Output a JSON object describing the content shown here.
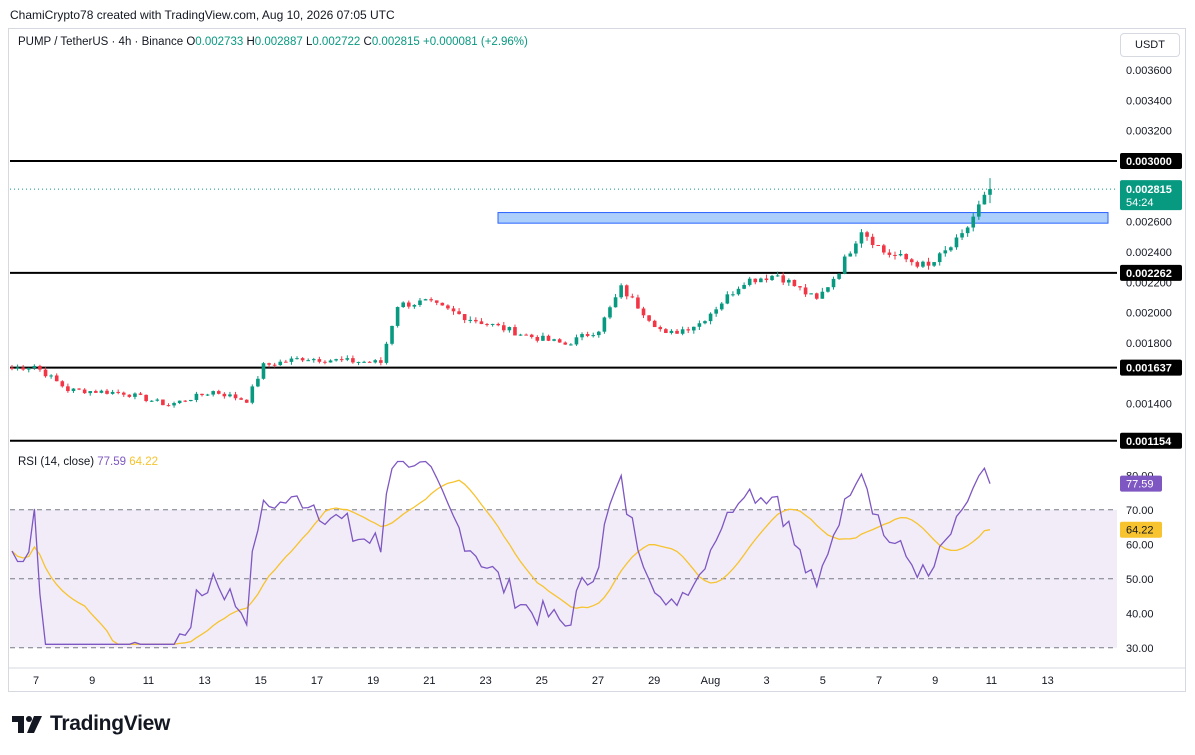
{
  "header": {
    "attribution": "ChamiCrypto78 created with TradingView.com, Aug 10, 2026 07:05 UTC"
  },
  "legend": {
    "symbol": "PUMP / TetherUS · 4h · Binance",
    "open_label": "O",
    "open": "0.002733",
    "high_label": "H",
    "high": "0.002887",
    "low_label": "L",
    "low": "0.002722",
    "close_label": "C",
    "close": "0.002815",
    "change": "+0.000081 (+2.96%)"
  },
  "currency_button": "USDT",
  "rsi_legend": {
    "label": "RSI (14, close)",
    "rsi_value": "77.59",
    "ma_value": "64.22"
  },
  "brand": {
    "name": "TradingView"
  },
  "colors": {
    "up": "#089981",
    "down": "#f23645",
    "rsi": "#7e57c2",
    "rsi_ma": "#f7c32e",
    "zone": "#90bff9",
    "zone_border": "#2962ff",
    "band": "#ede7f6"
  },
  "chart_data": [
    {
      "type": "candlestick",
      "pair": "PUMP / TetherUS",
      "interval": "4h",
      "x_ticks": [
        "7",
        "9",
        "11",
        "13",
        "15",
        "17",
        "19",
        "21",
        "23",
        "25",
        "27",
        "29",
        "Aug",
        "3",
        "5",
        "7",
        "9",
        "11",
        "13"
      ],
      "y_ticks": [
        "0.003600",
        "0.003400",
        "0.003200",
        "0.002600",
        "0.002400",
        "0.002200",
        "0.002000",
        "0.001800",
        "0.001400"
      ],
      "ylim": [
        0.00106,
        0.00368
      ],
      "horizontal_levels": [
        "0.003000",
        "0.002262",
        "0.001637",
        "0.001154"
      ],
      "last_price": "0.002815",
      "countdown": "54:24",
      "resistance_zone": [
        0.00259,
        0.00266
      ],
      "keypoints": [
        {
          "i": 0,
          "p": 0.00163
        },
        {
          "i": 4,
          "p": 0.00165
        },
        {
          "i": 10,
          "p": 0.00149
        },
        {
          "i": 20,
          "p": 0.00147
        },
        {
          "i": 28,
          "p": 0.00139
        },
        {
          "i": 36,
          "p": 0.00148
        },
        {
          "i": 42,
          "p": 0.00142
        },
        {
          "i": 45,
          "p": 0.00165
        },
        {
          "i": 52,
          "p": 0.0017
        },
        {
          "i": 60,
          "p": 0.00168
        },
        {
          "i": 66,
          "p": 0.00167
        },
        {
          "i": 69,
          "p": 0.00205
        },
        {
          "i": 74,
          "p": 0.00207
        },
        {
          "i": 82,
          "p": 0.00196
        },
        {
          "i": 92,
          "p": 0.00185
        },
        {
          "i": 99,
          "p": 0.00179
        },
        {
          "i": 105,
          "p": 0.00189
        },
        {
          "i": 109,
          "p": 0.00216
        },
        {
          "i": 117,
          "p": 0.00185
        },
        {
          "i": 123,
          "p": 0.00193
        },
        {
          "i": 131,
          "p": 0.00221
        },
        {
          "i": 137,
          "p": 0.00225
        },
        {
          "i": 144,
          "p": 0.00208
        },
        {
          "i": 148,
          "p": 0.00228
        },
        {
          "i": 152,
          "p": 0.00255
        },
        {
          "i": 156,
          "p": 0.0024
        },
        {
          "i": 160,
          "p": 0.00235
        },
        {
          "i": 164,
          "p": 0.0023
        },
        {
          "i": 170,
          "p": 0.0025
        },
        {
          "i": 173,
          "p": 0.0027
        },
        {
          "i": 175,
          "p": 0.002815
        }
      ]
    },
    {
      "type": "line",
      "name": "RSI (14, close)",
      "y_ticks": [
        "80.00",
        "70.00",
        "60.00",
        "50.00",
        "40.00",
        "30.00"
      ],
      "ylim": [
        25,
        85
      ],
      "band": [
        30,
        70
      ],
      "midline": 50,
      "rsi_last": "77.59",
      "ma_last": "64.22"
    }
  ]
}
